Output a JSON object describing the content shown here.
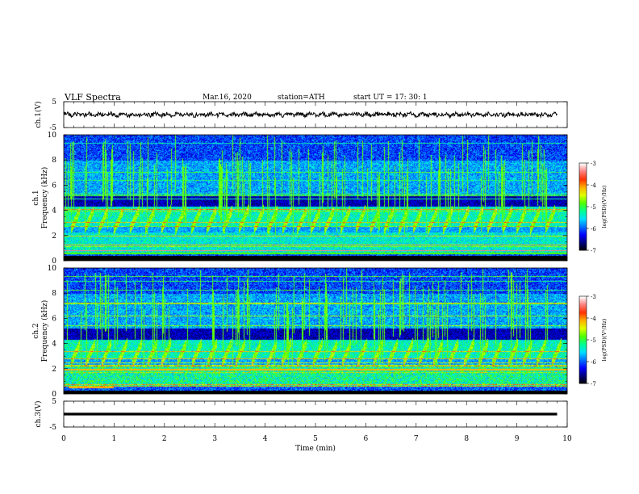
{
  "header": {
    "title": "VLF Spectra",
    "date": "Mar.16, 2020",
    "station": "station=ATH",
    "start": "start UT =  17: 30: 1"
  },
  "chart_data": {
    "type": "heatmap",
    "title": "VLF Spectra",
    "xlabel": "Time (min)",
    "xlim": [
      0,
      10
    ],
    "x_ticks": [
      "0",
      "1",
      "2",
      "3",
      "4",
      "5",
      "6",
      "7",
      "8",
      "9",
      "10"
    ],
    "panels": [
      {
        "kind": "waveform",
        "ylabel": "ch.1(V)",
        "ylim": [
          -5,
          5
        ],
        "y_ticks": [
          "5",
          "-5"
        ],
        "line_color": "#000000"
      },
      {
        "kind": "spectrogram",
        "ylabel_channel": "ch.1",
        "ylabel": "Frequency (kHz)",
        "ylim": [
          0,
          10
        ],
        "y_ticks": [
          "0",
          "2",
          "4",
          "6",
          "8",
          "10"
        ],
        "colorbar": {
          "label": "log(PSD)(V²/Hz)",
          "range": [
            -7,
            -3
          ],
          "ticks": [
            "-3",
            "-4",
            "-5",
            "-6",
            "-7"
          ]
        }
      },
      {
        "kind": "spectrogram",
        "ylabel_channel": "ch.2",
        "ylabel": "Frequency (kHz)",
        "ylim": [
          0,
          10
        ],
        "y_ticks": [
          "0",
          "2",
          "4",
          "6",
          "8",
          "10"
        ],
        "colorbar": {
          "label": "log(PSD)(V²/Hz)",
          "range": [
            -7,
            -3
          ],
          "ticks": [
            "-3",
            "-4",
            "-5",
            "-6",
            "-7"
          ]
        }
      },
      {
        "kind": "waveform",
        "ylabel": "ch.3(V)",
        "ylim": [
          -5,
          5
        ],
        "y_ticks": [
          "5",
          "-5"
        ],
        "line_color": "#000000"
      }
    ],
    "colormap": [
      "#000000",
      "#00007a",
      "#0000ff",
      "#0070ff",
      "#00e0ff",
      "#00ff90",
      "#50ff00",
      "#e0ff00",
      "#ffb000",
      "#ff3000",
      "#ff8080",
      "#ffffff"
    ]
  }
}
